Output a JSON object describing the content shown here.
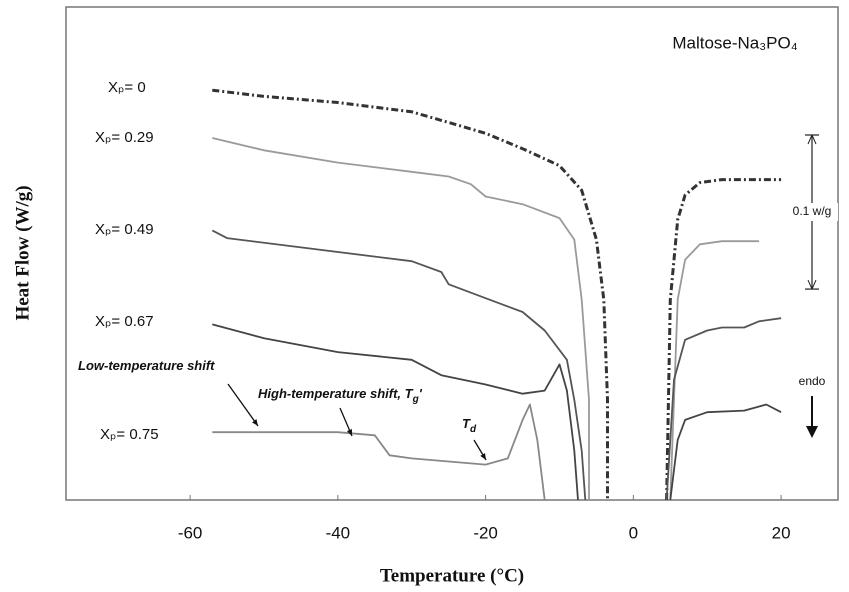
{
  "chart_data": {
    "type": "line",
    "title": "Maltose-Na₃PO₄",
    "x_label": "Temperature (°C)",
    "y_label": "Heat Flow (W/g)",
    "xlim": [
      -76.8,
      27.7
    ],
    "xticks": [
      -60,
      -40,
      -20,
      0,
      20
    ],
    "ylim": [
      0,
      0.32
    ],
    "series": [
      {
        "name": "Xₚ= 0",
        "color": "#333333",
        "dash": "dashdot",
        "x": [
          -57,
          -50,
          -40,
          -30,
          -25,
          -20,
          -15,
          -10,
          -7,
          -5,
          -4,
          -3.5,
          -3.5,
          null,
          4.5,
          5,
          6,
          7,
          9,
          12,
          20
        ],
        "values": [
          0.266,
          0.262,
          0.258,
          0.252,
          0.245,
          0.238,
          0.228,
          0.217,
          0.201,
          0.169,
          0.13,
          0.065,
          0,
          null,
          0,
          0.13,
          0.182,
          0.198,
          0.206,
          0.208,
          0.208
        ]
      },
      {
        "name": "Xₚ= 0.29",
        "color": "#9a9a9a",
        "x": [
          -57,
          -50,
          -40,
          -30,
          -25,
          -22,
          -20,
          -15,
          -10,
          -8,
          -7,
          -6,
          -6,
          null,
          5,
          6,
          7,
          9,
          12,
          17
        ],
        "values": [
          0.235,
          0.227,
          0.219,
          0.213,
          0.21,
          0.205,
          0.197,
          0.192,
          0.183,
          0.169,
          0.13,
          0.065,
          0,
          null,
          0,
          0.13,
          0.156,
          0.166,
          0.168,
          0.168
        ]
      },
      {
        "name": "Xₚ= 0.49",
        "color": "#555555",
        "x": [
          -57,
          -55,
          -40,
          -30,
          -26,
          -25,
          -20,
          -15,
          -12,
          -9,
          -8,
          -7,
          -6.5,
          null,
          4.5,
          5.5,
          7,
          10,
          12,
          15,
          17,
          20
        ],
        "values": [
          0.175,
          0.17,
          0.161,
          0.155,
          0.148,
          0.14,
          0.131,
          0.122,
          0.11,
          0.091,
          0.065,
          0.032,
          0,
          null,
          0,
          0.078,
          0.104,
          0.11,
          0.112,
          0.112,
          0.116,
          0.118
        ]
      },
      {
        "name": "Xₚ= 0.67",
        "color": "#444444",
        "x": [
          -57,
          -50,
          -40,
          -30,
          -26,
          -20,
          -15,
          -12,
          -10,
          -9,
          -8,
          -7.5,
          null,
          5,
          6,
          7,
          10,
          15,
          18,
          20
        ],
        "values": [
          0.114,
          0.105,
          0.096,
          0.091,
          0.081,
          0.075,
          0.069,
          0.071,
          0.088,
          0.071,
          0.032,
          0,
          null,
          0,
          0.039,
          0.052,
          0.057,
          0.058,
          0.062,
          0.057
        ]
      },
      {
        "name": "Xₚ= 0.75",
        "color": "#888888",
        "x": [
          -57,
          -40,
          -35,
          -33,
          -30,
          -20,
          -17,
          -15,
          -14,
          -13,
          -12
        ],
        "values": [
          0.044,
          0.044,
          0.042,
          0.029,
          0.027,
          0.023,
          0.027,
          0.052,
          0.062,
          0.039,
          0
        ]
      }
    ],
    "annotations": [
      {
        "text": "Low-temperature  shift"
      },
      {
        "text": "High-temperature  shift, ",
        "symbol": "T",
        "subscript": "g",
        "suffix": "'"
      },
      {
        "symbol": "T",
        "subscript": "d"
      }
    ],
    "scale_bar": {
      "value": 0.1,
      "label": "0.1 w/g"
    },
    "direction_label": "endo"
  }
}
